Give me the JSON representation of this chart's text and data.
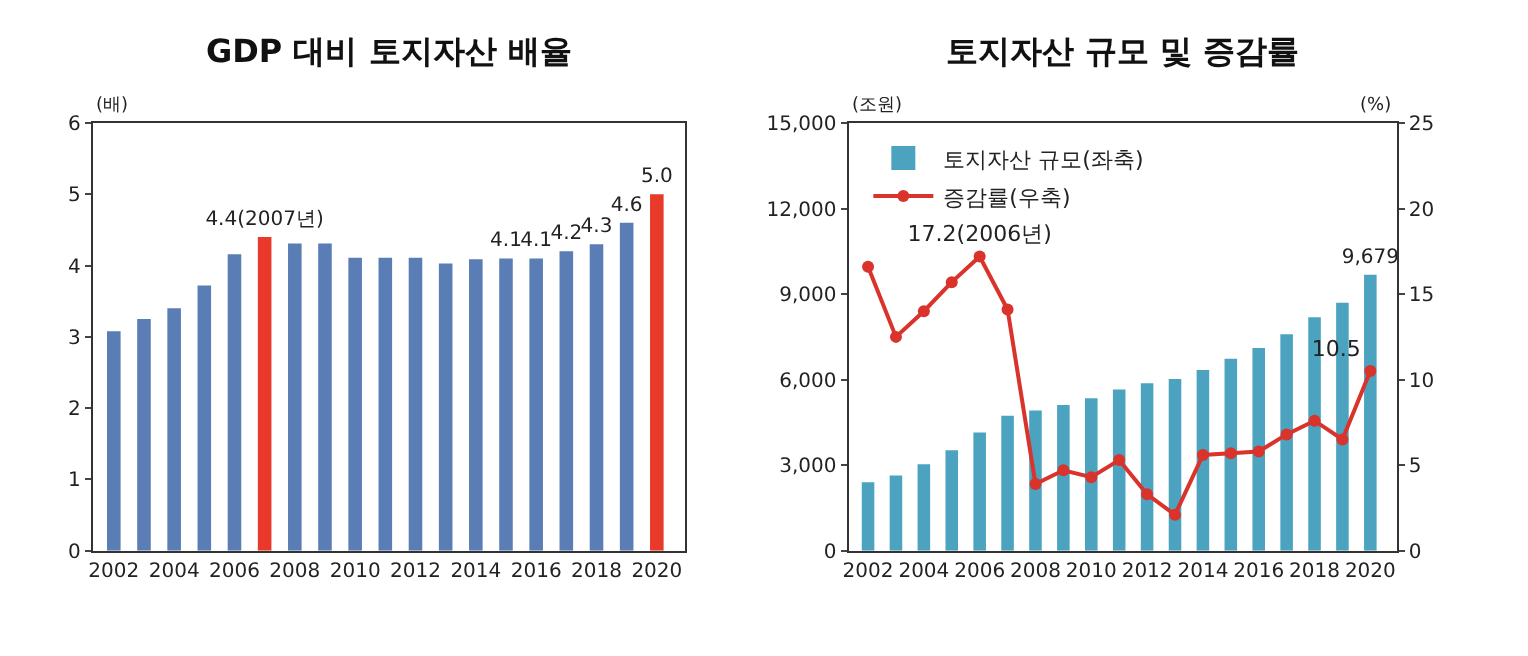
{
  "chart_data": [
    {
      "type": "bar",
      "title": "GDP 대비 토지자산 배율",
      "ylabel": "(배)",
      "categories": [
        "2002",
        null,
        "2004",
        null,
        "2006",
        null,
        "2008",
        null,
        "2010",
        null,
        "2012",
        null,
        "2014",
        null,
        "2016",
        null,
        "2018",
        null,
        "2020"
      ],
      "series": [
        {
          "colors": [
            "#5a7db5",
            "#5a7db5",
            "#5a7db5",
            "#5a7db5",
            "#5a7db5",
            "#e8392b",
            "#5a7db5",
            "#5a7db5",
            "#5a7db5",
            "#5a7db5",
            "#5a7db5",
            "#5a7db5",
            "#5a7db5",
            "#5a7db5",
            "#5a7db5",
            "#5a7db5",
            "#5a7db5",
            "#5a7db5",
            "#e8392b"
          ],
          "values": [
            3.08,
            3.25,
            3.4,
            3.72,
            4.16,
            4.4,
            4.31,
            4.31,
            4.11,
            4.11,
            4.11,
            4.03,
            4.09,
            4.1,
            4.1,
            4.2,
            4.3,
            4.6,
            5.0
          ],
          "value_labels": [
            null,
            null,
            null,
            null,
            null,
            "4.4(2007년)",
            null,
            null,
            null,
            null,
            null,
            null,
            null,
            "4.1",
            "4.1",
            "4.2",
            "4.3",
            "4.6",
            "5.0"
          ]
        }
      ],
      "ylim": [
        0,
        6
      ],
      "yticks": [
        0,
        1,
        2,
        3,
        4,
        5,
        6
      ],
      "legend": false
    },
    {
      "type": "bar",
      "title": "토지자산 규모 및 증감률",
      "ylabel": "(조원)",
      "y2label": "(%)",
      "categories": [
        "2002",
        null,
        "2004",
        null,
        "2006",
        null,
        "2008",
        null,
        "2010",
        null,
        "2012",
        null,
        "2014",
        null,
        "2016",
        null,
        "2018",
        null,
        "2020"
      ],
      "series": [
        {
          "name": "토지자산 규모(좌축)",
          "type": "bar",
          "color": "#4ba3bf",
          "values": [
            2400,
            2640,
            3030,
            3520,
            4150,
            4730,
            4920,
            5110,
            5350,
            5650,
            5870,
            6020,
            6340,
            6730,
            7110,
            7590,
            8190,
            8700,
            9679
          ],
          "value_labels": [
            null,
            null,
            null,
            null,
            null,
            null,
            null,
            null,
            null,
            null,
            null,
            null,
            null,
            null,
            null,
            null,
            null,
            null,
            "9,679"
          ]
        },
        {
          "name": "증감률(우축)",
          "type": "line",
          "axis": "y2",
          "color": "#d9332b",
          "marker": "circle",
          "line_style": "solid",
          "values": [
            16.6,
            12.5,
            14.0,
            15.7,
            17.2,
            14.1,
            3.9,
            4.7,
            4.3,
            5.3,
            3.3,
            2.1,
            5.6,
            5.7,
            5.8,
            6.8,
            7.6,
            6.5,
            10.5
          ],
          "value_labels": [
            null,
            null,
            null,
            null,
            "17.2(2006년)",
            null,
            null,
            null,
            null,
            null,
            null,
            null,
            null,
            null,
            null,
            null,
            null,
            null,
            "10.5"
          ]
        }
      ],
      "ylim": [
        0,
        15000
      ],
      "yticks": [
        {
          "value": 0,
          "label": "0"
        },
        {
          "value": 3000,
          "label": "3,000"
        },
        {
          "value": 6000,
          "label": "6,000"
        },
        {
          "value": 9000,
          "label": "9,000"
        },
        {
          "value": 12000,
          "label": "12,000"
        },
        {
          "value": 15000,
          "label": "15,000"
        }
      ],
      "y2lim": [
        0,
        25
      ],
      "y2ticks": [
        0,
        5,
        10,
        15,
        20,
        25
      ],
      "legend": "top left"
    }
  ]
}
